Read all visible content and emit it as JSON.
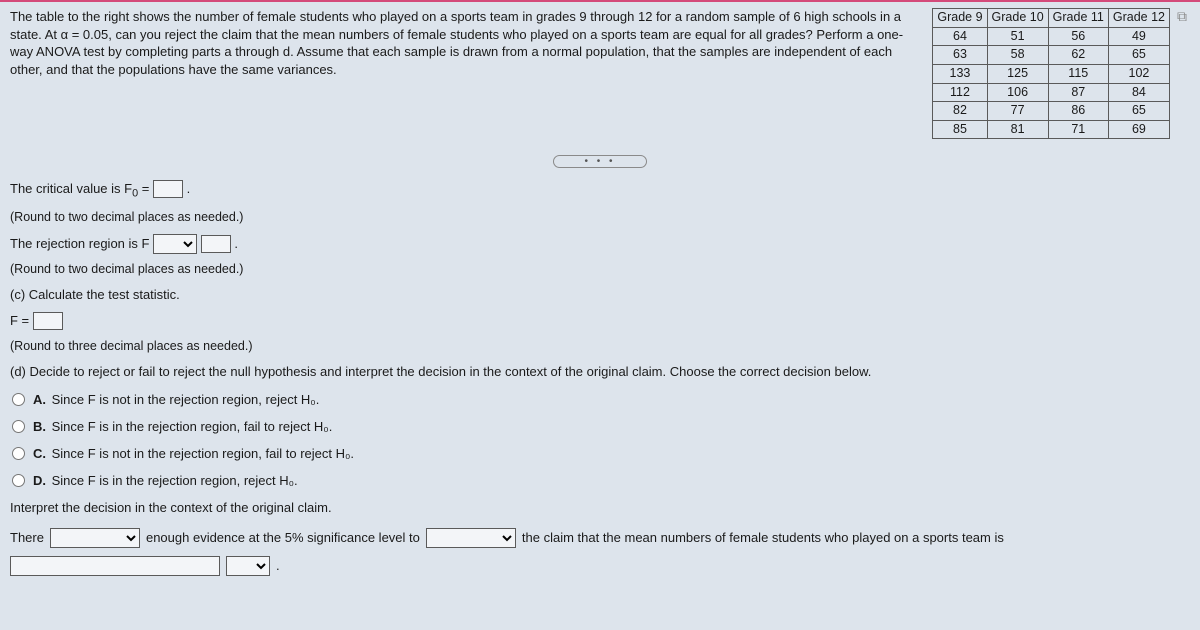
{
  "prompt": "The table to the right shows the number of female students who played on a sports team in grades 9 through 12 for a random sample of 6 high schools in a state. At α = 0.05, can you reject the claim that the mean numbers of female students who played on a sports team are equal for all grades? Perform a one-way ANOVA test by completing parts a through d. Assume that each sample is drawn from a normal population, that the samples are independent of each other, and that the populations have the same variances.",
  "table": {
    "headers": [
      "Grade 9",
      "Grade 10",
      "Grade 11",
      "Grade 12"
    ],
    "rows": [
      [
        "64",
        "51",
        "56",
        "49"
      ],
      [
        "63",
        "58",
        "62",
        "65"
      ],
      [
        "133",
        "125",
        "115",
        "102"
      ],
      [
        "112",
        "106",
        "87",
        "84"
      ],
      [
        "82",
        "77",
        "86",
        "65"
      ],
      [
        "85",
        "81",
        "71",
        "69"
      ]
    ]
  },
  "copy_icon_glyph": "⧉",
  "dots": "• • •",
  "lines": {
    "crit_before": "The critical value is F",
    "crit_sub": "0",
    "crit_after": " = ",
    "crit_end": ".",
    "round2": "(Round to two decimal places as needed.)",
    "rej_before": "The rejection region is F ",
    "rej_end": ".",
    "part_c": "(c) Calculate the test statistic.",
    "fstat_before": "F = ",
    "round3": "(Round to three decimal places as needed.)",
    "part_d": "(d) Decide to reject or fail to reject the null hypothesis and interpret the decision in the context of the original claim. Choose the correct decision below.",
    "interpret": "Interpret the decision in the context of the original claim.",
    "there": "There",
    "enough": "enough evidence at the 5% significance level to",
    "claim_tail": "the claim that the mean numbers of female students who played on a sports team is",
    "period": "."
  },
  "choices": {
    "A": "Since F is not in the rejection region, reject H₀.",
    "B": "Since F is in the rejection region, fail to reject H₀.",
    "C": "Since F is not in the rejection region, fail to reject H₀.",
    "D": "Since F is in the rejection region, reject H₀."
  },
  "dropdown_placeholder": " "
}
